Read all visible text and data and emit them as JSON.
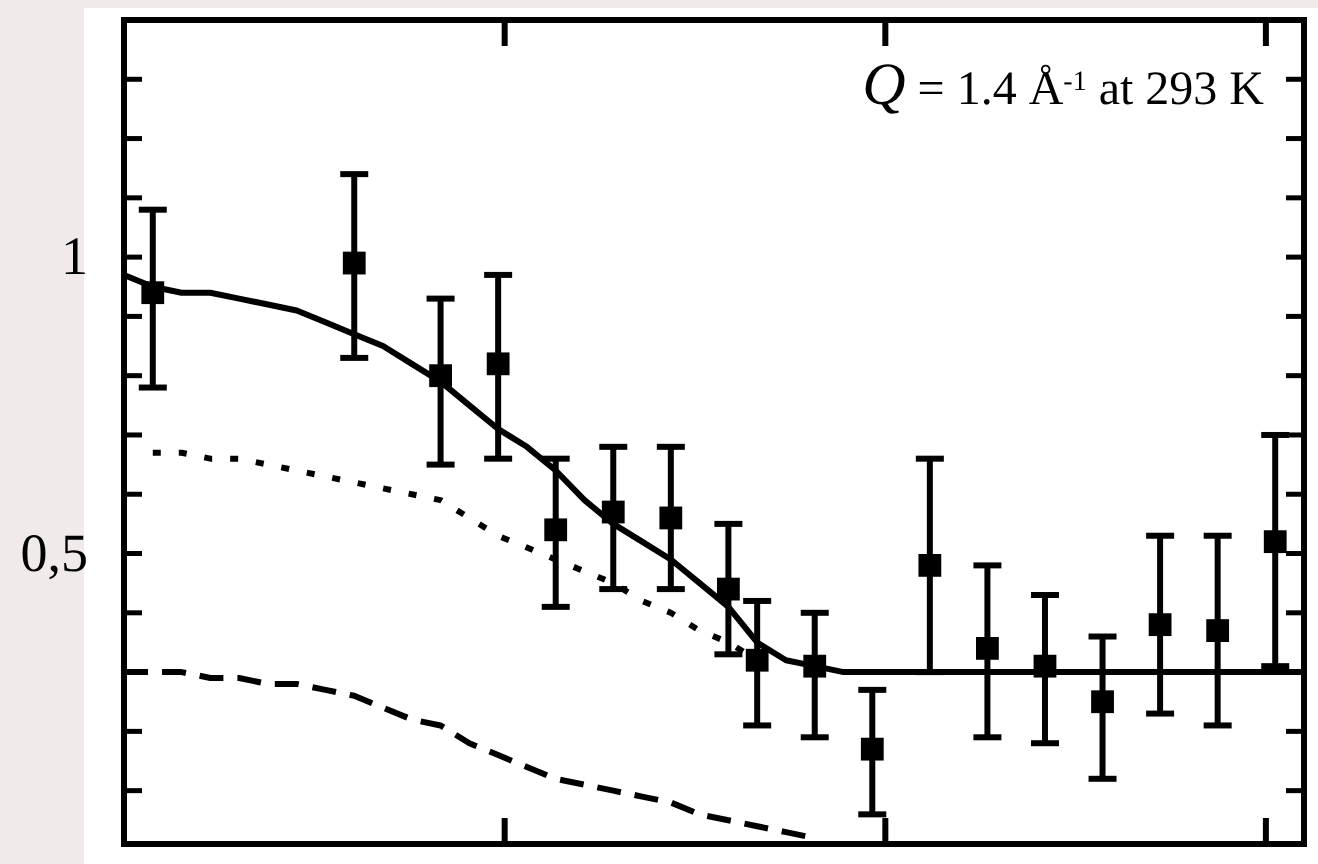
{
  "chart_data": {
    "type": "line",
    "categories": [
      null,
      null,
      null,
      null,
      null,
      null,
      null,
      null,
      null,
      null,
      null,
      null,
      null,
      null,
      null,
      null,
      null,
      null,
      null,
      null,
      null,
      null,
      null,
      null,
      null,
      null,
      null,
      null,
      null,
      null,
      null,
      null,
      null,
      null,
      null,
      null,
      null,
      null,
      null,
      null,
      null,
      null
    ],
    "ylim": [
      0.01,
      1.4
    ],
    "yticks": [
      {
        "value": 0.1,
        "label": null
      },
      {
        "value": 0.2,
        "label": null
      },
      {
        "value": 0.3,
        "label": null
      },
      {
        "value": 0.4,
        "label": null
      },
      {
        "value": 0.5,
        "label": "0,5"
      },
      {
        "value": 0.6,
        "label": null
      },
      {
        "value": 0.7,
        "label": null
      },
      {
        "value": 0.8,
        "label": null
      },
      {
        "value": 0.9,
        "label": null
      },
      {
        "value": 1,
        "label": "1"
      },
      {
        "value": 1.1,
        "label": null
      },
      {
        "value": 1.2,
        "label": null
      },
      {
        "value": 1.3,
        "label": null
      }
    ],
    "tick_labels": "y",
    "annotations": [
      "Q = 1.4 Å$^{-1}$ at 293 K"
    ],
    "series": [
      {
        "type": "scatter",
        "color": "#000000",
        "marker": "square",
        "values": [
          null,
          0.94,
          null,
          null,
          null,
          null,
          null,
          null,
          0.99,
          null,
          null,
          0.8,
          null,
          0.82,
          null,
          0.54,
          null,
          0.57,
          null,
          0.56,
          null,
          0.44,
          0.32,
          null,
          0.31,
          null,
          0.17,
          null,
          0.48,
          null,
          0.34,
          null,
          0.31,
          null,
          0.25,
          null,
          0.38,
          null,
          0.37,
          null,
          0.52,
          null
        ],
        "errors": [
          null,
          [
            0.78,
            1.08
          ],
          null,
          null,
          null,
          null,
          null,
          null,
          [
            0.83,
            1.14
          ],
          null,
          null,
          [
            0.65,
            0.93
          ],
          null,
          [
            0.66,
            0.97
          ],
          null,
          [
            0.41,
            0.66
          ],
          null,
          [
            0.44,
            0.68
          ],
          null,
          [
            0.44,
            0.68
          ],
          null,
          [
            0.33,
            0.55
          ],
          [
            0.21,
            0.42
          ],
          null,
          [
            0.19,
            0.4
          ],
          null,
          [
            0.06,
            0.27
          ],
          null,
          [
            0.3,
            0.66
          ],
          null,
          [
            0.19,
            0.48
          ],
          null,
          [
            0.18,
            0.43
          ],
          null,
          [
            0.12,
            0.36
          ],
          null,
          [
            0.23,
            0.53
          ],
          null,
          [
            0.21,
            0.53
          ],
          null,
          [
            0.31,
            0.7
          ],
          null
        ]
      },
      {
        "color": "#000000",
        "line_style": "solid",
        "values": [
          0.97,
          0.95,
          0.94,
          0.94,
          0.93,
          0.92,
          0.91,
          0.89,
          0.87,
          0.85,
          0.82,
          0.79,
          0.75,
          0.71,
          0.68,
          0.64,
          0.59,
          0.55,
          0.52,
          0.49,
          0.45,
          0.41,
          0.35,
          0.32,
          0.31,
          0.3,
          0.3,
          0.3,
          0.3,
          0.3,
          0.3,
          0.3,
          0.3,
          0.3,
          0.3,
          0.3,
          0.3,
          0.3,
          0.3,
          0.3,
          0.3,
          0.3
        ]
      },
      {
        "color": "#000000",
        "line_style": "dotted",
        "values": [
          null,
          0.67,
          0.67,
          0.66,
          0.66,
          0.65,
          0.64,
          0.63,
          0.62,
          0.61,
          0.6,
          0.59,
          0.56,
          0.53,
          0.51,
          0.49,
          0.47,
          0.45,
          0.42,
          0.4,
          0.37,
          0.35,
          0.32,
          null,
          null,
          null,
          null,
          null,
          null,
          null,
          null,
          null,
          null,
          null,
          null,
          null,
          null,
          null,
          null,
          null,
          null,
          null
        ]
      },
      {
        "color": "#000000",
        "line_style": "dashed",
        "values": [
          0.3,
          0.3,
          0.3,
          0.29,
          0.29,
          0.28,
          0.28,
          0.27,
          0.26,
          0.24,
          0.22,
          0.21,
          0.18,
          0.16,
          0.14,
          0.12,
          0.11,
          0.1,
          0.09,
          0.08,
          0.06,
          0.05,
          0.04,
          0.03,
          0.02,
          null,
          null,
          null,
          null,
          null,
          null,
          null,
          null,
          null,
          null,
          null,
          null,
          null,
          null,
          null,
          null,
          null
        ]
      }
    ]
  }
}
